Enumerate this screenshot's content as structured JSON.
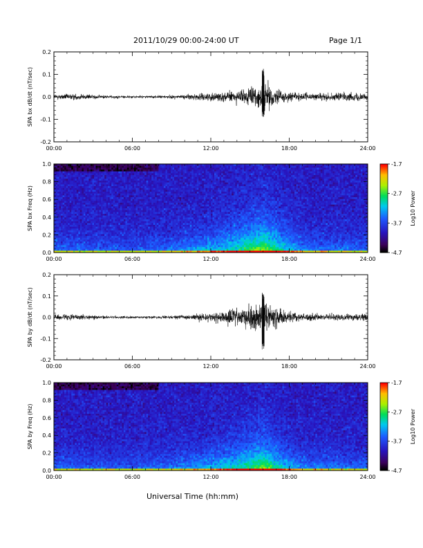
{
  "header": {
    "title": "2011/10/29  00:00-24:00 UT",
    "page": "Page 1/1"
  },
  "x_axis_title": "Universal Time (hh:mm)",
  "chart_data": [
    {
      "type": "line",
      "ylabel": "SPA bx dB/dt (nT/sec)",
      "ylim": [
        -0.2,
        0.2
      ],
      "yticks": [
        "0.2",
        "0.1",
        "0.0",
        "-0.1",
        "-0.2"
      ],
      "xlim_hours": [
        0,
        24
      ],
      "xticks": [
        "00:00",
        "06:00",
        "12:00",
        "18:00",
        "24:00"
      ],
      "envelope": [
        {
          "hour": 0,
          "amplitude": 0.012
        },
        {
          "hour": 2,
          "amplitude": 0.012
        },
        {
          "hour": 4,
          "amplitude": 0.007
        },
        {
          "hour": 6,
          "amplitude": 0.006
        },
        {
          "hour": 8,
          "amplitude": 0.006
        },
        {
          "hour": 10,
          "amplitude": 0.009
        },
        {
          "hour": 12,
          "amplitude": 0.018
        },
        {
          "hour": 14,
          "amplitude": 0.025
        },
        {
          "hour": 15.5,
          "amplitude": 0.05
        },
        {
          "hour": 16,
          "amplitude": 0.07
        },
        {
          "hour": 17,
          "amplitude": 0.035
        },
        {
          "hour": 18,
          "amplitude": 0.02
        },
        {
          "hour": 20,
          "amplitude": 0.015
        },
        {
          "hour": 22,
          "amplitude": 0.016
        },
        {
          "hour": 24,
          "amplitude": 0.016
        }
      ],
      "peak_max": 0.13,
      "peak_min": -0.09
    },
    {
      "type": "heatmap",
      "ylabel": "SPA bx Freq (Hz)",
      "ylim": [
        0,
        1.0
      ],
      "yticks": [
        "1.0",
        "0.8",
        "0.6",
        "0.4",
        "0.2",
        "0.0"
      ],
      "xlim_hours": [
        0,
        24
      ],
      "xticks": [
        "00:00",
        "06:00",
        "12:00",
        "18:00",
        "24:00"
      ],
      "colorbar": {
        "label": "Log10 Power",
        "ticks": [
          "-1.7",
          "-2.7",
          "-3.7",
          "-4.7"
        ],
        "range": [
          -4.7,
          -1.7
        ]
      },
      "activity": [
        {
          "hour": 0,
          "level": 0.1
        },
        {
          "hour": 6,
          "level": 0.05
        },
        {
          "hour": 9,
          "level": 0.15
        },
        {
          "hour": 12,
          "level": 0.35
        },
        {
          "hour": 14,
          "level": 0.55
        },
        {
          "hour": 16,
          "level": 0.8
        },
        {
          "hour": 17.5,
          "level": 0.5
        },
        {
          "hour": 19,
          "level": 0.2
        },
        {
          "hour": 24,
          "level": 0.1
        }
      ]
    },
    {
      "type": "line",
      "ylabel": "SPA by dB/dt (nT/sec)",
      "ylim": [
        -0.2,
        0.2
      ],
      "yticks": [
        "0.2",
        "0.1",
        "0.0",
        "-0.1",
        "-0.2"
      ],
      "xlim_hours": [
        0,
        24
      ],
      "xticks": [
        "00:00",
        "06:00",
        "12:00",
        "18:00",
        "24:00"
      ],
      "envelope": [
        {
          "hour": 0,
          "amplitude": 0.012
        },
        {
          "hour": 2,
          "amplitude": 0.012
        },
        {
          "hour": 4,
          "amplitude": 0.007
        },
        {
          "hour": 6,
          "amplitude": 0.006
        },
        {
          "hour": 8,
          "amplitude": 0.006
        },
        {
          "hour": 10,
          "amplitude": 0.01
        },
        {
          "hour": 12,
          "amplitude": 0.02
        },
        {
          "hour": 14,
          "amplitude": 0.035
        },
        {
          "hour": 15.5,
          "amplitude": 0.065
        },
        {
          "hour": 16,
          "amplitude": 0.08
        },
        {
          "hour": 17,
          "amplitude": 0.04
        },
        {
          "hour": 18,
          "amplitude": 0.022
        },
        {
          "hour": 20,
          "amplitude": 0.016
        },
        {
          "hour": 22,
          "amplitude": 0.016
        },
        {
          "hour": 24,
          "amplitude": 0.016
        }
      ],
      "peak_max": 0.12,
      "peak_min": -0.17
    },
    {
      "type": "heatmap",
      "ylabel": "SPA by Freq (Hz)",
      "ylim": [
        0,
        1.0
      ],
      "yticks": [
        "1.0",
        "0.8",
        "0.6",
        "0.4",
        "0.2",
        "0.0"
      ],
      "xlim_hours": [
        0,
        24
      ],
      "xticks": [
        "00:00",
        "06:00",
        "12:00",
        "18:00",
        "24:00"
      ],
      "colorbar": {
        "label": "Log10 Power",
        "ticks": [
          "-1.7",
          "-2.7",
          "-3.7",
          "-4.7"
        ],
        "range": [
          -4.7,
          -1.7
        ]
      },
      "activity": [
        {
          "hour": 0,
          "level": 0.1
        },
        {
          "hour": 6,
          "level": 0.05
        },
        {
          "hour": 9,
          "level": 0.15
        },
        {
          "hour": 12,
          "level": 0.35
        },
        {
          "hour": 14,
          "level": 0.5
        },
        {
          "hour": 16,
          "level": 0.75
        },
        {
          "hour": 17.5,
          "level": 0.45
        },
        {
          "hour": 19,
          "level": 0.2
        },
        {
          "hour": 24,
          "level": 0.1
        }
      ]
    }
  ]
}
